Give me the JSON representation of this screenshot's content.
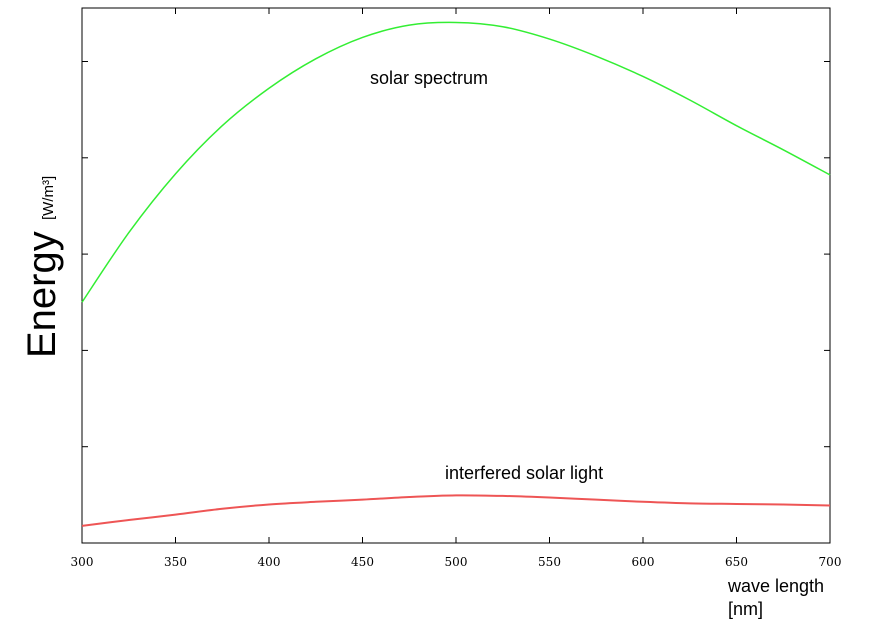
{
  "chart_data": {
    "type": "line",
    "title": "",
    "xlabel": "wave length",
    "xlabel_unit": "[nm]",
    "ylabel": "Energy",
    "ylabel_unit": "[W/m³]",
    "xlim": [
      300,
      700
    ],
    "xticks": [
      300,
      350,
      400,
      450,
      500,
      550,
      600,
      650,
      700
    ],
    "ylim": [
      0,
      100
    ],
    "yticks": [
      0,
      18,
      36,
      54,
      72,
      90
    ],
    "y_tick_labels_shown": false,
    "grid": false,
    "series": [
      {
        "name": "solar spectrum",
        "color": "#33ee33",
        "x": [
          300,
          325,
          350,
          375,
          400,
          425,
          450,
          475,
          500,
          525,
          550,
          575,
          600,
          625,
          650,
          675,
          700
        ],
        "y": [
          45,
          58,
          69,
          78,
          85,
          90.5,
          94.5,
          96.8,
          97.3,
          96.5,
          94.2,
          91,
          87.2,
          82.8,
          78,
          73.5,
          68.8
        ]
      },
      {
        "name": "interfered solar light",
        "color": "#ee5555",
        "x": [
          300,
          325,
          350,
          375,
          400,
          425,
          450,
          475,
          500,
          525,
          550,
          575,
          600,
          625,
          650,
          675,
          700
        ],
        "y": [
          3.2,
          4.3,
          5.3,
          6.4,
          7.2,
          7.7,
          8.1,
          8.6,
          8.9,
          8.8,
          8.5,
          8.1,
          7.7,
          7.4,
          7.3,
          7.2,
          7.0
        ]
      }
    ]
  }
}
